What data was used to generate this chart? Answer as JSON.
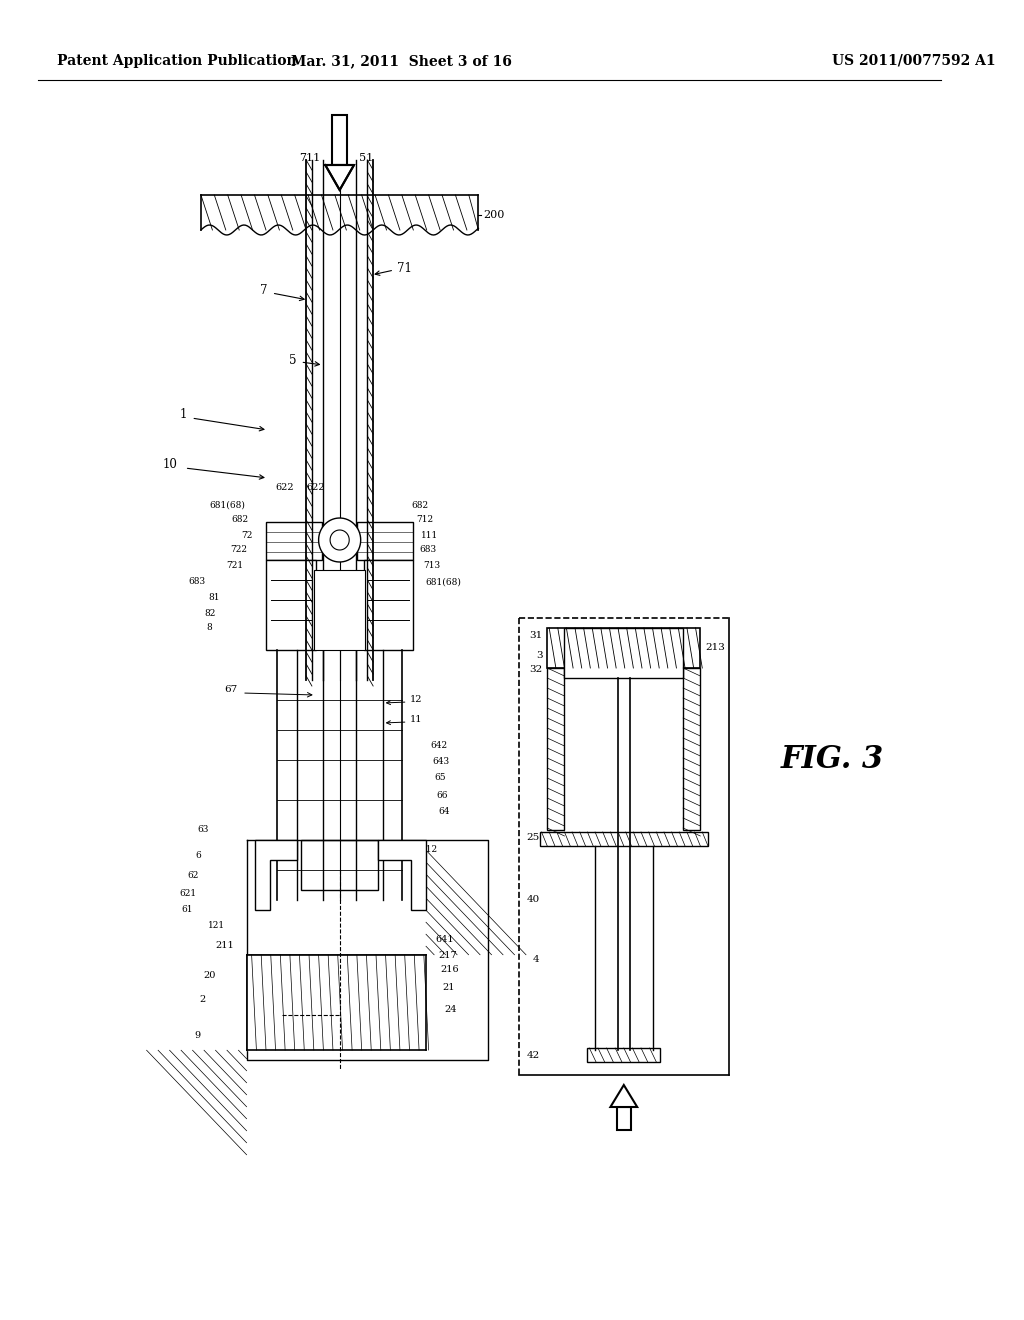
{
  "background_color": "#ffffff",
  "header_left": "Patent Application Publication",
  "header_mid": "Mar. 31, 2011  Sheet 3 of 16",
  "header_right": "US 2011/0077592 A1",
  "fig_label": "FIG. 3"
}
